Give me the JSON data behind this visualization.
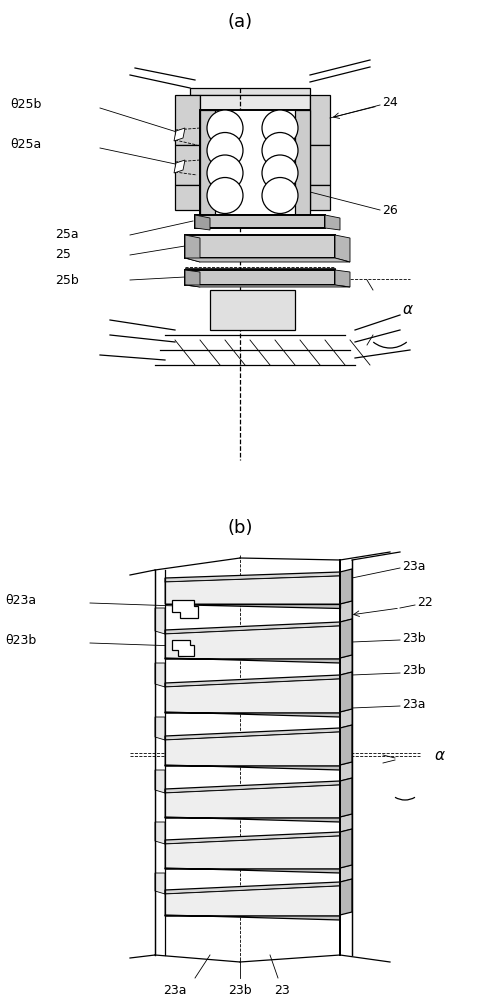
{
  "bg_color": "#ffffff",
  "line_color": "#000000",
  "fig_width": 4.8,
  "fig_height": 10.0,
  "dpi": 100,
  "panel_a": {
    "title": "(a)",
    "labels": {
      "theta25b": "θ25b",
      "theta25a": "θ25a",
      "n24": "24",
      "n26": "26",
      "n25a": "25a",
      "n25": "25",
      "n25b": "25b",
      "alpha": "α"
    }
  },
  "panel_b": {
    "title": "(b)",
    "labels": {
      "theta23a": "θ23a",
      "theta23b": "θ23b",
      "n23a_top": "23a",
      "n22": "22",
      "n23b_upper": "23b",
      "n23b_lower": "23b",
      "n23a_lower": "23a",
      "alpha": "α",
      "n23a_bot": "23a",
      "n23b_bot": "23b",
      "n23_bot": "23"
    }
  }
}
